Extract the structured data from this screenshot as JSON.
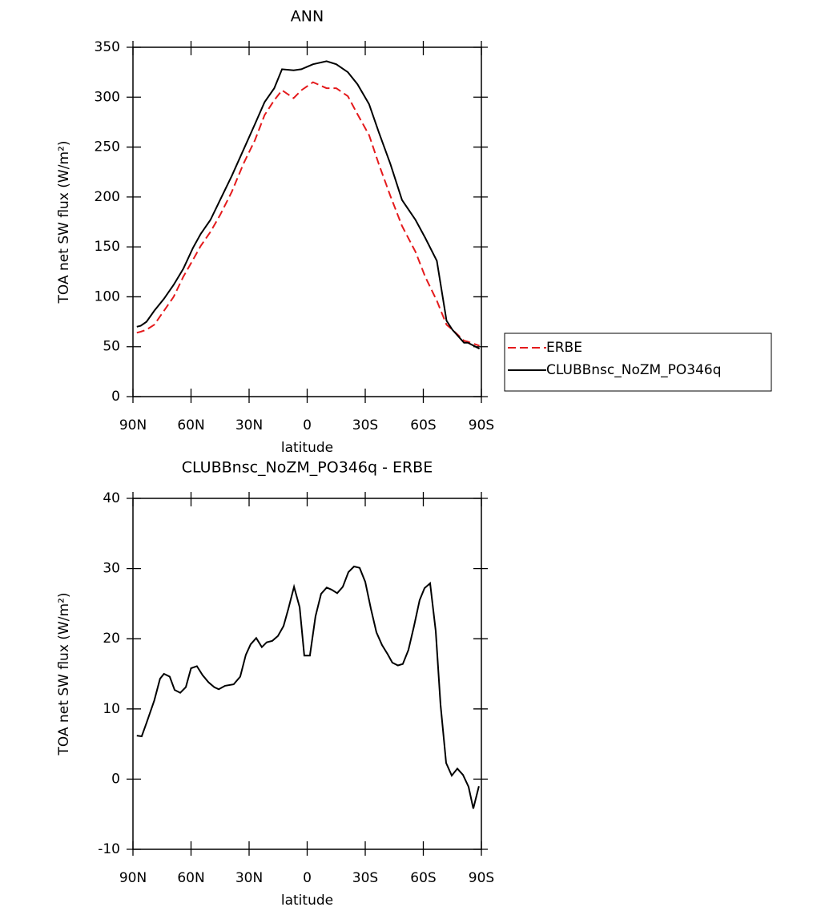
{
  "chart_data": [
    {
      "type": "line",
      "title": "ANN",
      "xlabel": "latitude",
      "ylabel": "TOA net SW flux (W/m²)",
      "xlim": [
        90,
        -90
      ],
      "ylim": [
        0,
        350
      ],
      "xticks": [
        {
          "value": 90,
          "label": "90N"
        },
        {
          "value": 60,
          "label": "60N"
        },
        {
          "value": 30,
          "label": "30N"
        },
        0,
        {
          "value": -30,
          "label": "30S"
        },
        {
          "value": -60,
          "label": "60S"
        },
        {
          "value": -90,
          "label": "90S"
        }
      ],
      "yticks": [
        0,
        50,
        100,
        150,
        200,
        250,
        300,
        350
      ],
      "legend": "right",
      "x": [
        88,
        86,
        83,
        79,
        74,
        69,
        64,
        59,
        55,
        50,
        45,
        39,
        33,
        27,
        22,
        17,
        13,
        7,
        3,
        -3,
        -10,
        -15,
        -21,
        -26,
        -32,
        -37,
        -43,
        -49,
        -56,
        -61,
        -67,
        -72,
        -75,
        -81,
        -83,
        -89
      ],
      "series": [
        {
          "name": "ERBE",
          "color": "#e41a1c",
          "dash": "dashed",
          "values": [
            64,
            65,
            67,
            72,
            86,
            100,
            120,
            137,
            151,
            165,
            182,
            205,
            233,
            257,
            282,
            297,
            307,
            299,
            307,
            315,
            309,
            309,
            301,
            283,
            262,
            233,
            201,
            171,
            145,
            120,
            96,
            72,
            67,
            56,
            55,
            51
          ]
        },
        {
          "name": "CLUBBnsc_NoZM_PO346q",
          "color": "#000000",
          "dash": "solid",
          "values": [
            70,
            71,
            75,
            86,
            98,
            112,
            128,
            149,
            163,
            177,
            197,
            221,
            247,
            273,
            295,
            309,
            328,
            327,
            328,
            333,
            336,
            333,
            325,
            313,
            293,
            265,
            233,
            197,
            177,
            159,
            136,
            76,
            67,
            54,
            54,
            48
          ]
        }
      ]
    },
    {
      "type": "line",
      "title": "CLUBBnsc_NoZM_PO346q - ERBE",
      "xlabel": "latitude",
      "ylabel": "TOA net SW flux (W/m²)",
      "xlim": [
        90,
        -90
      ],
      "ylim": [
        -10,
        40
      ],
      "xticks": [
        {
          "value": 90,
          "label": "90N"
        },
        {
          "value": 60,
          "label": "60N"
        },
        {
          "value": 30,
          "label": "30N"
        },
        0,
        {
          "value": -30,
          "label": "30S"
        },
        {
          "value": -60,
          "label": "60S"
        },
        {
          "value": -90,
          "label": "90S"
        }
      ],
      "yticks": [
        -10,
        0,
        10,
        20,
        30,
        40
      ],
      "x": [
        88,
        85.5,
        83,
        79,
        76,
        74,
        71,
        68.5,
        65.6,
        62.7,
        60,
        57,
        54,
        51,
        48,
        45.7,
        42.4,
        38,
        34.6,
        31.7,
        29.2,
        26.3,
        23.4,
        20.9,
        18,
        15.1,
        12.2,
        9.7,
        6.8,
        3.9,
        1.5,
        -1.4,
        -4.3,
        -7.2,
        -10.1,
        -12.6,
        -15.5,
        -18.4,
        -21.3,
        -24.2,
        -27.1,
        -30,
        -32.9,
        -35.8,
        -38.7,
        -41.6,
        -44,
        -46.9,
        -49.4,
        -52.3,
        -55.2,
        -58.1,
        -60.6,
        -63.5,
        -66.4,
        -68.9,
        -71.8,
        -74.7,
        -77.6,
        -80.5,
        -83.4,
        -85.8,
        -88.7
      ],
      "series": [
        {
          "color": "#000000",
          "dash": "solid",
          "values": [
            6.2,
            6.1,
            8,
            11.2,
            14.3,
            15,
            14.6,
            12.7,
            12.3,
            13.1,
            15.8,
            16.1,
            14.8,
            13.8,
            13.1,
            12.8,
            13.3,
            13.5,
            14.6,
            17.7,
            19.2,
            20.1,
            18.8,
            19.5,
            19.7,
            20.4,
            21.8,
            24.3,
            27.4,
            24.5,
            17.6,
            17.6,
            23.2,
            26.4,
            27.3,
            27,
            26.5,
            27.4,
            29.5,
            30.3,
            30.1,
            28.1,
            24.3,
            20.9,
            19.1,
            17.8,
            16.6,
            16.2,
            16.4,
            18.4,
            21.8,
            25.5,
            27.2,
            27.9,
            21.1,
            10.6,
            2.3,
            0.5,
            1.5,
            0.6,
            -1.1,
            -4.2,
            -1
          ]
        }
      ]
    }
  ]
}
